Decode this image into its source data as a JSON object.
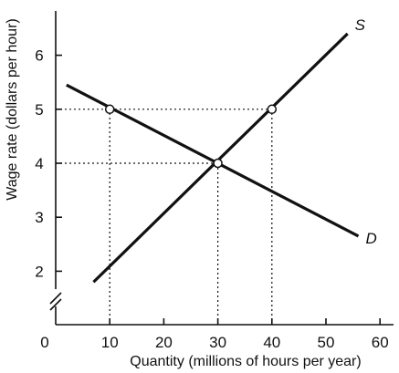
{
  "chart_data": {
    "type": "line",
    "title": "",
    "xlabel": "Quantity (millions of hours per year)",
    "ylabel": "Wage rate (dollars per hour)",
    "xlim": [
      0,
      60
    ],
    "ylim_visible": [
      1.8,
      6.6
    ],
    "axis_break": true,
    "grid": false,
    "x_ticks": [
      0,
      10,
      20,
      30,
      40,
      50,
      60
    ],
    "y_ticks": [
      2,
      3,
      4,
      5,
      6
    ],
    "x_tick_labels": [
      "0",
      "10",
      "20",
      "30",
      "40",
      "50",
      "60"
    ],
    "y_tick_labels": [
      "2",
      "3",
      "4",
      "5",
      "6"
    ],
    "series": [
      {
        "name": "S",
        "color": "#111111",
        "points": [
          {
            "x": 7,
            "y": 1.8
          },
          {
            "x": 54,
            "y": 6.4
          }
        ]
      },
      {
        "name": "D",
        "color": "#111111",
        "points": [
          {
            "x": 2,
            "y": 5.45
          },
          {
            "x": 56,
            "y": 2.65
          }
        ]
      }
    ],
    "marked_points": [
      {
        "x": 10,
        "y": 5
      },
      {
        "x": 30,
        "y": 4
      },
      {
        "x": 40,
        "y": 5
      }
    ],
    "reference_lines": {
      "vertical": [
        {
          "x": 10,
          "y_to": 5
        },
        {
          "x": 30,
          "y_to": 4
        },
        {
          "x": 40,
          "y_to": 5
        }
      ],
      "horizontal": [
        {
          "y": 5,
          "x_to": 40
        },
        {
          "y": 4,
          "x_to": 30
        }
      ]
    }
  }
}
